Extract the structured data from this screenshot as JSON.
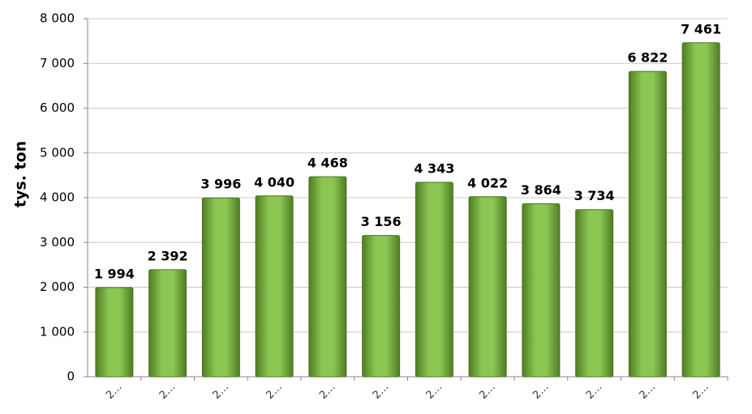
{
  "chart_data": {
    "type": "bar",
    "y_label": "tys. ton",
    "categories": [
      "2…",
      "2…",
      "2…",
      "2…",
      "2…",
      "2…",
      "2…",
      "2…",
      "2…",
      "2…",
      "2…",
      "2…"
    ],
    "values": [
      1994,
      2392,
      3996,
      4040,
      4468,
      3156,
      4343,
      4022,
      3864,
      3734,
      6822,
      7461
    ],
    "value_labels": [
      "1 994",
      "2 392",
      "3 996",
      "4 040",
      "4 468",
      "3 156",
      "4 343",
      "4 022",
      "3 864",
      "3 734",
      "6 822",
      "7 461"
    ],
    "color": "#7ab648",
    "ylim": [
      0,
      8000
    ],
    "yticks": [
      0,
      {
        "value": 1000,
        "label": "1 000"
      },
      {
        "value": 2000,
        "label": "2 000"
      },
      {
        "value": 3000,
        "label": "3 000"
      },
      {
        "value": 4000,
        "label": "4 000"
      },
      {
        "value": 5000,
        "label": "5 000"
      },
      {
        "value": 6000,
        "label": "6 000"
      },
      {
        "value": 7000,
        "label": "7 000"
      },
      {
        "value": 8000,
        "label": "8 000"
      }
    ],
    "grid": true
  }
}
